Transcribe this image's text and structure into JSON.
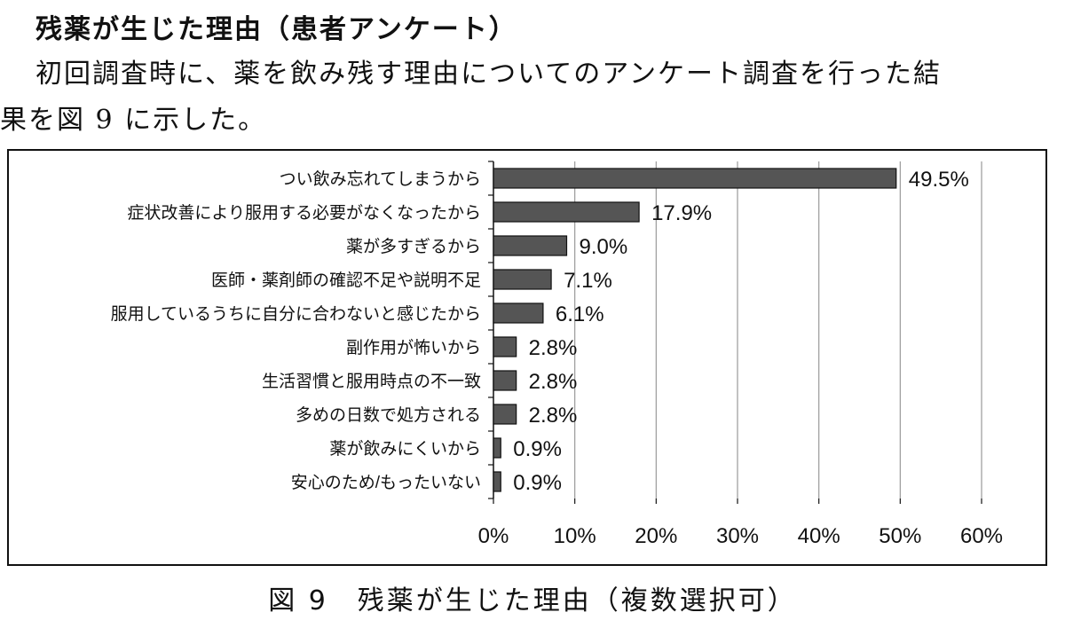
{
  "section": {
    "heading": "残薬が生じた理由（患者アンケート）",
    "paragraph_line1": "初回調査時に、薬を飲み残す理由についてのアンケート調査を行った結",
    "paragraph_line2": "果を図 9 に示した。"
  },
  "figure": {
    "caption": "図 9　残薬が生じた理由（複数選択可）"
  },
  "chart_data": {
    "type": "bar",
    "orientation": "horizontal",
    "title": "",
    "xlabel": "",
    "ylabel": "",
    "categories": [
      "つい飲み忘れてしまうから",
      "症状改善により服用する必要がなくなったから",
      "薬が多すぎるから",
      "医師・薬剤師の確認不足や説明不足",
      "服用しているうちに自分に合わないと感じたから",
      "副作用が怖いから",
      "生活習慣と服用時点の不一致",
      "多めの日数で処方される",
      "薬が飲みにくいから",
      "安心のため/もったいない"
    ],
    "values": [
      49.5,
      17.9,
      9.0,
      7.1,
      6.1,
      2.8,
      2.8,
      2.8,
      0.9,
      0.9
    ],
    "data_labels": [
      "49.5%",
      "17.9%",
      "9.0%",
      "7.1%",
      "6.1%",
      "2.8%",
      "2.8%",
      "2.8%",
      "0.9%",
      "0.9%"
    ],
    "xlim": [
      0,
      60
    ],
    "ticks": [
      0,
      10,
      20,
      30,
      40,
      50,
      60
    ],
    "tick_labels": [
      "0%",
      "10%",
      "20%",
      "30%",
      "40%",
      "50%",
      "60%"
    ],
    "grid": "vertical",
    "bar_color": "#555555",
    "bar_edge_color": "#111111",
    "grid_color": "#999999"
  }
}
